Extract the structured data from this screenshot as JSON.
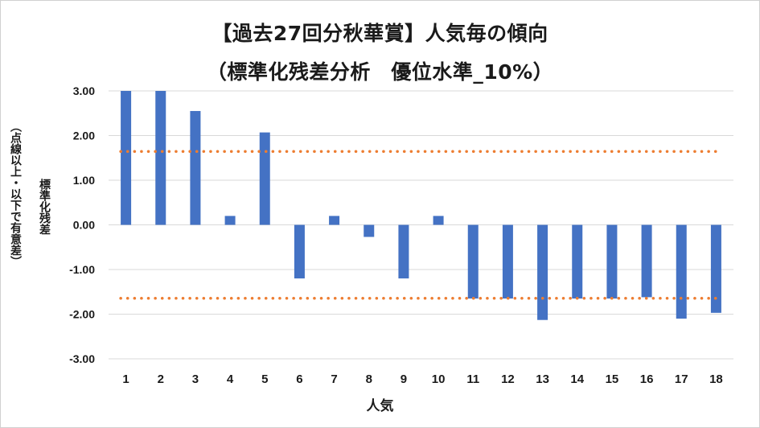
{
  "chart_data": {
    "type": "bar",
    "title": "【過去27回分秋華賞】人気毎の傾向",
    "subtitle": "（標準化残差分析　優位水準_10%）",
    "xlabel": "人気",
    "ylabel": "標準化残差",
    "ylabel_note": "（点線以上・以下で有意差）",
    "categories": [
      "1",
      "2",
      "3",
      "4",
      "5",
      "6",
      "7",
      "8",
      "9",
      "10",
      "11",
      "12",
      "13",
      "14",
      "15",
      "16",
      "17",
      "18"
    ],
    "values": [
      3.0,
      3.0,
      2.55,
      0.2,
      2.07,
      -1.2,
      0.2,
      -0.27,
      -1.2,
      0.2,
      -1.65,
      -1.65,
      -2.13,
      -1.65,
      -1.65,
      -1.62,
      -2.1,
      -1.97
    ],
    "ylim": [
      -3,
      3
    ],
    "yticks": [
      "3.00",
      "2.00",
      "1.00",
      "0.00",
      "-1.00",
      "-2.00",
      "-3.00"
    ],
    "ytick_values": [
      3,
      2,
      1,
      0,
      -1,
      -2,
      -3
    ],
    "thresholds": [
      1.645,
      -1.645
    ],
    "bar_color": "#4472C4",
    "threshold_color": "#ED7D31",
    "grid_color": "#d9d9d9",
    "grid": true,
    "legend": "none"
  }
}
